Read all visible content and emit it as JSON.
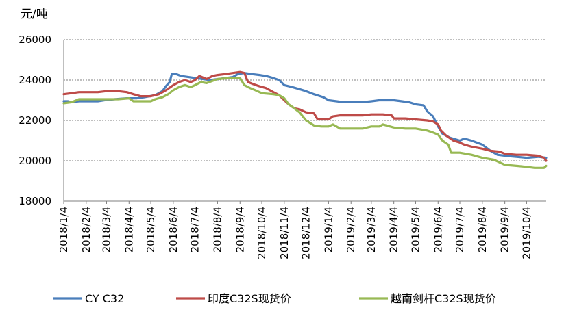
{
  "chart_data": {
    "type": "line",
    "unit_label": "元/吨",
    "ylim": [
      18000,
      26000
    ],
    "y_ticks": [
      18000,
      20000,
      22000,
      24000,
      26000
    ],
    "y_tick_labels": [
      "18000",
      "20000",
      "22000",
      "24000",
      "26000"
    ],
    "grid": true,
    "legend_position": "bottom",
    "x_tick_labels": [
      "2018/1/4",
      "2018/2/4",
      "2018/3/4",
      "2018/4/4",
      "2018/5/4",
      "2018/6/4",
      "2018/7/4",
      "2018/8/4",
      "2018/9/4",
      "2018/10/4",
      "2018/11/4",
      "2018/12/4",
      "2019/1/4",
      "2019/2/4",
      "2019/3/4",
      "2019/4/4",
      "2019/5/4",
      "2019/6/4",
      "2019/7/4",
      "2019/8/4",
      "2019/9/4",
      "2019/10/4"
    ],
    "x_start": "2018-01-04",
    "x_end": "2019-10-31",
    "series": [
      {
        "name": "CY C32",
        "color": "#4a7ebb",
        "points": [
          [
            "2018-01-04",
            22950
          ],
          [
            "2018-01-10",
            22950
          ],
          [
            "2018-01-15",
            22900
          ],
          [
            "2018-01-25",
            22950
          ],
          [
            "2018-02-20",
            22950
          ],
          [
            "2018-03-01",
            23000
          ],
          [
            "2018-03-15",
            23050
          ],
          [
            "2018-04-01",
            23100
          ],
          [
            "2018-04-15",
            23100
          ],
          [
            "2018-04-25",
            23150
          ],
          [
            "2018-05-10",
            23250
          ],
          [
            "2018-05-20",
            23450
          ],
          [
            "2018-05-25",
            23700
          ],
          [
            "2018-05-30",
            23900
          ],
          [
            "2018-06-02",
            24300
          ],
          [
            "2018-06-08",
            24300
          ],
          [
            "2018-06-15",
            24200
          ],
          [
            "2018-06-25",
            24150
          ],
          [
            "2018-07-05",
            24100
          ],
          [
            "2018-07-15",
            24050
          ],
          [
            "2018-07-25",
            24000
          ],
          [
            "2018-08-05",
            24050
          ],
          [
            "2018-08-15",
            24100
          ],
          [
            "2018-08-25",
            24150
          ],
          [
            "2018-09-01",
            24300
          ],
          [
            "2018-09-10",
            24350
          ],
          [
            "2018-09-20",
            24300
          ],
          [
            "2018-10-01",
            24250
          ],
          [
            "2018-10-10",
            24200
          ],
          [
            "2018-10-20",
            24100
          ],
          [
            "2018-10-28",
            24000
          ],
          [
            "2018-11-04",
            23750
          ],
          [
            "2018-11-15",
            23650
          ],
          [
            "2018-11-25",
            23550
          ],
          [
            "2018-12-04",
            23450
          ],
          [
            "2018-12-15",
            23300
          ],
          [
            "2018-12-28",
            23150
          ],
          [
            "2019-01-04",
            23000
          ],
          [
            "2019-01-15",
            22950
          ],
          [
            "2019-01-25",
            22900
          ],
          [
            "2019-02-04",
            22900
          ],
          [
            "2019-02-20",
            22900
          ],
          [
            "2019-03-04",
            22950
          ],
          [
            "2019-03-15",
            23000
          ],
          [
            "2019-04-04",
            23000
          ],
          [
            "2019-04-15",
            22950
          ],
          [
            "2019-04-25",
            22900
          ],
          [
            "2019-05-04",
            22800
          ],
          [
            "2019-05-15",
            22750
          ],
          [
            "2019-05-20",
            22450
          ],
          [
            "2019-05-28",
            22200
          ],
          [
            "2019-06-04",
            21700
          ],
          [
            "2019-06-10",
            21350
          ],
          [
            "2019-06-20",
            21150
          ],
          [
            "2019-07-04",
            21000
          ],
          [
            "2019-07-10",
            21100
          ],
          [
            "2019-07-20",
            21000
          ],
          [
            "2019-08-04",
            20800
          ],
          [
            "2019-08-15",
            20500
          ],
          [
            "2019-08-25",
            20300
          ],
          [
            "2019-09-04",
            20250
          ],
          [
            "2019-09-20",
            20200
          ],
          [
            "2019-10-04",
            20150
          ],
          [
            "2019-10-20",
            20200
          ],
          [
            "2019-10-31",
            20150
          ]
        ]
      },
      {
        "name": "印度C32S现货价",
        "color": "#be4b48",
        "points": [
          [
            "2018-01-04",
            23300
          ],
          [
            "2018-01-15",
            23350
          ],
          [
            "2018-01-25",
            23400
          ],
          [
            "2018-02-04",
            23400
          ],
          [
            "2018-02-20",
            23400
          ],
          [
            "2018-03-04",
            23450
          ],
          [
            "2018-03-20",
            23450
          ],
          [
            "2018-04-01",
            23400
          ],
          [
            "2018-04-10",
            23300
          ],
          [
            "2018-04-20",
            23200
          ],
          [
            "2018-05-04",
            23200
          ],
          [
            "2018-05-15",
            23300
          ],
          [
            "2018-05-25",
            23500
          ],
          [
            "2018-06-04",
            23750
          ],
          [
            "2018-06-12",
            23900
          ],
          [
            "2018-06-20",
            24000
          ],
          [
            "2018-06-28",
            23900
          ],
          [
            "2018-07-04",
            24000
          ],
          [
            "2018-07-10",
            24200
          ],
          [
            "2018-07-20",
            24050
          ],
          [
            "2018-07-28",
            24200
          ],
          [
            "2018-08-04",
            24250
          ],
          [
            "2018-08-15",
            24300
          ],
          [
            "2018-08-25",
            24350
          ],
          [
            "2018-09-04",
            24400
          ],
          [
            "2018-09-10",
            24350
          ],
          [
            "2018-09-15",
            23900
          ],
          [
            "2018-09-22",
            23800
          ],
          [
            "2018-09-30",
            23700
          ],
          [
            "2018-10-10",
            23600
          ],
          [
            "2018-10-20",
            23400
          ],
          [
            "2018-10-28",
            23250
          ],
          [
            "2018-11-04",
            23000
          ],
          [
            "2018-11-10",
            22800
          ],
          [
            "2018-11-18",
            22600
          ],
          [
            "2018-11-25",
            22550
          ],
          [
            "2018-12-04",
            22400
          ],
          [
            "2018-12-15",
            22350
          ],
          [
            "2018-12-20",
            22050
          ],
          [
            "2019-01-04",
            22050
          ],
          [
            "2019-01-10",
            22200
          ],
          [
            "2019-01-20",
            22250
          ],
          [
            "2019-02-04",
            22250
          ],
          [
            "2019-02-20",
            22250
          ],
          [
            "2019-03-04",
            22300
          ],
          [
            "2019-03-20",
            22300
          ],
          [
            "2019-04-01",
            22250
          ],
          [
            "2019-04-04",
            22100
          ],
          [
            "2019-04-20",
            22100
          ],
          [
            "2019-05-04",
            22050
          ],
          [
            "2019-05-20",
            22000
          ],
          [
            "2019-05-28",
            21950
          ],
          [
            "2019-06-04",
            21800
          ],
          [
            "2019-06-08",
            21500
          ],
          [
            "2019-06-15",
            21250
          ],
          [
            "2019-06-25",
            21000
          ],
          [
            "2019-07-04",
            20900
          ],
          [
            "2019-07-10",
            20800
          ],
          [
            "2019-07-20",
            20700
          ],
          [
            "2019-08-04",
            20600
          ],
          [
            "2019-08-15",
            20500
          ],
          [
            "2019-08-28",
            20450
          ],
          [
            "2019-09-04",
            20350
          ],
          [
            "2019-09-20",
            20300
          ],
          [
            "2019-10-04",
            20300
          ],
          [
            "2019-10-20",
            20250
          ],
          [
            "2019-10-28",
            20150
          ],
          [
            "2019-10-31",
            20000
          ]
        ]
      },
      {
        "name": "越南剑杆C32S现货价",
        "color": "#98b954",
        "points": [
          [
            "2018-01-04",
            22850
          ],
          [
            "2018-01-15",
            22900
          ],
          [
            "2018-01-25",
            23050
          ],
          [
            "2018-02-04",
            23050
          ],
          [
            "2018-02-20",
            23050
          ],
          [
            "2018-03-04",
            23050
          ],
          [
            "2018-03-20",
            23050
          ],
          [
            "2018-04-04",
            23100
          ],
          [
            "2018-04-10",
            22950
          ],
          [
            "2018-04-20",
            22950
          ],
          [
            "2018-05-04",
            22950
          ],
          [
            "2018-05-10",
            23050
          ],
          [
            "2018-05-20",
            23150
          ],
          [
            "2018-05-28",
            23300
          ],
          [
            "2018-06-04",
            23500
          ],
          [
            "2018-06-12",
            23650
          ],
          [
            "2018-06-20",
            23750
          ],
          [
            "2018-06-28",
            23650
          ],
          [
            "2018-07-04",
            23750
          ],
          [
            "2018-07-12",
            23900
          ],
          [
            "2018-07-20",
            23850
          ],
          [
            "2018-08-04",
            24050
          ],
          [
            "2018-08-20",
            24100
          ],
          [
            "2018-09-04",
            24100
          ],
          [
            "2018-09-10",
            23750
          ],
          [
            "2018-09-18",
            23600
          ],
          [
            "2018-09-25",
            23500
          ],
          [
            "2018-10-04",
            23350
          ],
          [
            "2018-10-20",
            23300
          ],
          [
            "2018-10-28",
            23250
          ],
          [
            "2018-11-04",
            23100
          ],
          [
            "2018-11-10",
            22800
          ],
          [
            "2018-11-16",
            22650
          ],
          [
            "2018-11-25",
            22400
          ],
          [
            "2018-12-04",
            22000
          ],
          [
            "2018-12-15",
            21750
          ],
          [
            "2018-12-25",
            21700
          ],
          [
            "2019-01-04",
            21700
          ],
          [
            "2019-01-10",
            21800
          ],
          [
            "2019-01-20",
            21600
          ],
          [
            "2019-02-04",
            21600
          ],
          [
            "2019-02-20",
            21600
          ],
          [
            "2019-03-04",
            21700
          ],
          [
            "2019-03-15",
            21700
          ],
          [
            "2019-03-20",
            21800
          ],
          [
            "2019-04-04",
            21650
          ],
          [
            "2019-04-20",
            21600
          ],
          [
            "2019-05-04",
            21600
          ],
          [
            "2019-05-20",
            21500
          ],
          [
            "2019-05-28",
            21400
          ],
          [
            "2019-06-04",
            21300
          ],
          [
            "2019-06-10",
            21000
          ],
          [
            "2019-06-18",
            20800
          ],
          [
            "2019-06-22",
            20400
          ],
          [
            "2019-07-04",
            20400
          ],
          [
            "2019-07-20",
            20300
          ],
          [
            "2019-08-04",
            20150
          ],
          [
            "2019-08-20",
            20050
          ],
          [
            "2019-09-04",
            19800
          ],
          [
            "2019-09-20",
            19750
          ],
          [
            "2019-10-04",
            19700
          ],
          [
            "2019-10-15",
            19650
          ],
          [
            "2019-10-28",
            19650
          ],
          [
            "2019-10-31",
            19750
          ]
        ]
      }
    ]
  }
}
